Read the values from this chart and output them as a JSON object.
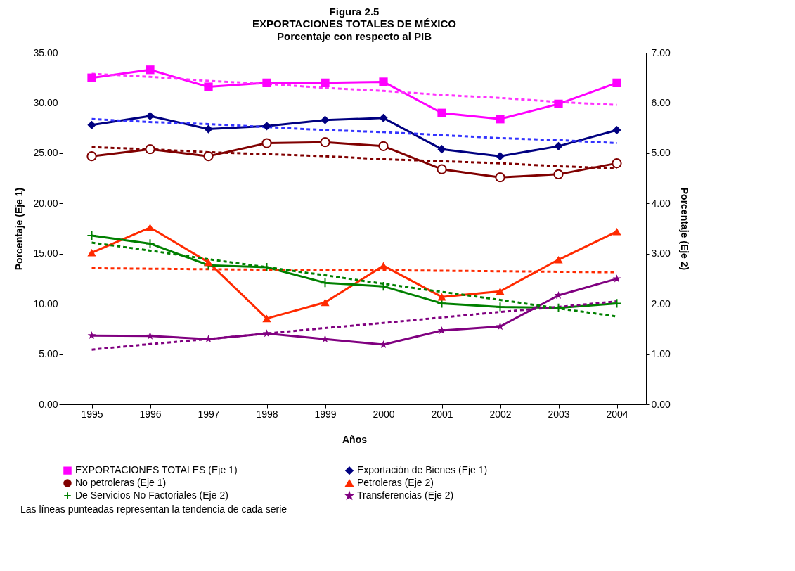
{
  "chart_data": {
    "type": "line",
    "title": "Figura 2.5\nEXPORTACIONES TOTALES DE MÉXICO",
    "subtitle": "Porcentaje con respecto al PIB",
    "xlabel": "Años",
    "ylabel": "Porcentaje (Eje 1)",
    "y2label": "Porcentaje (Eje 2)",
    "categories": [
      "1995",
      "1996",
      "1997",
      "1998",
      "1999",
      "2000",
      "2001",
      "2002",
      "2003",
      "2004"
    ],
    "ylim": [
      0,
      35
    ],
    "yticks": [
      {
        "value": 0,
        "label": "0.00"
      },
      {
        "value": 5,
        "label": "5.00"
      },
      {
        "value": 10,
        "label": "10.00"
      },
      {
        "value": 15,
        "label": "15.00"
      },
      {
        "value": 20,
        "label": "20.00"
      },
      {
        "value": 25,
        "label": "25.00"
      },
      {
        "value": 30,
        "label": "30.00"
      },
      {
        "value": 35,
        "label": "35.00"
      }
    ],
    "y2lim": [
      0,
      7
    ],
    "y2ticks": [
      {
        "value": 0,
        "label": "0.00"
      },
      {
        "value": 1,
        "label": "1.00"
      },
      {
        "value": 2,
        "label": "2.00"
      },
      {
        "value": 3,
        "label": "3.00"
      },
      {
        "value": 4,
        "label": "4.00"
      },
      {
        "value": 5,
        "label": "5.00"
      },
      {
        "value": 6,
        "label": "6.00"
      },
      {
        "value": 7,
        "label": "7.00"
      }
    ],
    "grid": false,
    "legend": "bottom",
    "line_style": "solid",
    "series": [
      {
        "name": "EXPORTACIONES TOTALES (Eje 1)",
        "color": "#ff00ff",
        "marker": "square",
        "values": [
          32.5,
          33.3,
          31.6,
          32.0,
          32.0,
          32.1,
          29.0,
          28.4,
          29.9,
          32.0
        ]
      },
      {
        "name": "Exportación de Bienes (Eje 1)",
        "color": "#000080",
        "marker": "diamond",
        "values": [
          27.8,
          28.7,
          27.4,
          27.7,
          28.3,
          28.5,
          25.4,
          24.7,
          25.7,
          27.3
        ]
      },
      {
        "name": "No petroleras (Eje 1)",
        "color": "#800000",
        "marker": "circle",
        "values": [
          24.7,
          25.4,
          24.7,
          26.0,
          26.1,
          25.7,
          23.4,
          22.6,
          22.9,
          24.0
        ]
      },
      {
        "name": "Petroleras (Eje 2)",
        "color": "#ff2a00",
        "marker": "triangle",
        "axis": "y2",
        "values": [
          3.02,
          3.52,
          2.83,
          1.71,
          2.03,
          2.76,
          2.14,
          2.25,
          2.88,
          3.44
        ]
      },
      {
        "name": "De Servicios No Factoriales (Eje 2)",
        "color": "#008000",
        "marker": "cross",
        "axis": "y2",
        "values": [
          3.36,
          3.2,
          2.77,
          2.73,
          2.42,
          2.35,
          2.01,
          1.94,
          1.92,
          2.01
        ]
      },
      {
        "name": "Transferencias (Eje 2)",
        "color": "#800080",
        "marker": "star",
        "axis": "y2",
        "values": [
          1.37,
          1.36,
          1.3,
          1.41,
          1.3,
          1.19,
          1.47,
          1.55,
          2.17,
          2.5
        ]
      },
      {
        "type": "line",
        "color": "#ff33ff",
        "marker": "none",
        "line_style": "dashed",
        "values": [
          32.9,
          32.6,
          32.2,
          31.9,
          31.5,
          31.2,
          30.8,
          30.5,
          30.1,
          29.8
        ]
      },
      {
        "type": "line",
        "color": "#3333ff",
        "marker": "none",
        "line_style": "dashed",
        "values": [
          28.4,
          28.1,
          27.9,
          27.6,
          27.3,
          27.1,
          26.8,
          26.5,
          26.3,
          26.0
        ]
      },
      {
        "type": "line",
        "color": "#800000",
        "marker": "none",
        "line_style": "dashed",
        "values": [
          25.6,
          25.4,
          25.1,
          24.9,
          24.7,
          24.4,
          24.2,
          24.0,
          23.7,
          23.5
        ]
      },
      {
        "type": "line",
        "color": "#ff2a00",
        "marker": "none",
        "line_style": "dashed",
        "axis": "y2",
        "values": [
          2.71,
          2.7,
          2.69,
          2.68,
          2.67,
          2.67,
          2.66,
          2.65,
          2.64,
          2.63
        ]
      },
      {
        "type": "line",
        "color": "#008000",
        "marker": "none",
        "line_style": "dashed",
        "axis": "y2",
        "values": [
          3.22,
          3.06,
          2.89,
          2.73,
          2.57,
          2.4,
          2.24,
          2.08,
          1.91,
          1.75
        ]
      },
      {
        "type": "line",
        "color": "#800080",
        "marker": "none",
        "line_style": "dashed",
        "axis": "y2",
        "values": [
          1.09,
          1.2,
          1.3,
          1.41,
          1.52,
          1.62,
          1.73,
          1.84,
          1.94,
          2.05
        ]
      }
    ],
    "annotations": [
      "Las líneas punteadas representan la tendencia de cada serie"
    ]
  }
}
